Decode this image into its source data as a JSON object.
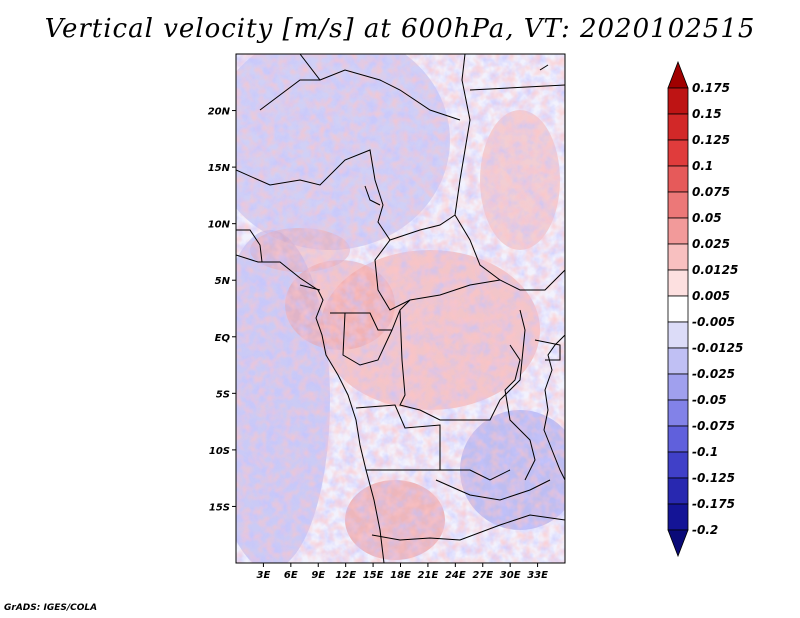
{
  "title": "Vertical velocity [m/s] at 600hPa, VT: 2020102515",
  "credit": "GrADS: IGES/COLA",
  "map": {
    "lon_range": [
      0,
      36
    ],
    "lat_range": [
      -20,
      25
    ],
    "lon_ticks": [
      {
        "value": 3,
        "label": "3E"
      },
      {
        "value": 6,
        "label": "6E"
      },
      {
        "value": 9,
        "label": "9E"
      },
      {
        "value": 12,
        "label": "12E"
      },
      {
        "value": 15,
        "label": "15E"
      },
      {
        "value": 18,
        "label": "18E"
      },
      {
        "value": 21,
        "label": "21E"
      },
      {
        "value": 24,
        "label": "24E"
      },
      {
        "value": 27,
        "label": "27E"
      },
      {
        "value": 30,
        "label": "30E"
      },
      {
        "value": 33,
        "label": "33E"
      }
    ],
    "lat_ticks": [
      {
        "value": 20,
        "label": "20N"
      },
      {
        "value": 15,
        "label": "15N"
      },
      {
        "value": 10,
        "label": "10N"
      },
      {
        "value": 5,
        "label": "5N"
      },
      {
        "value": 0,
        "label": "EQ"
      },
      {
        "value": -5,
        "label": "5S"
      },
      {
        "value": -10,
        "label": "10S"
      },
      {
        "value": -15,
        "label": "15S"
      }
    ]
  },
  "colorbar": {
    "levels": [
      "0.175",
      "0.15",
      "0.125",
      "0.1",
      "0.075",
      "0.05",
      "0.025",
      "0.0125",
      "0.005",
      "-0.005",
      "-0.0125",
      "-0.025",
      "-0.05",
      "-0.075",
      "-0.1",
      "-0.125",
      "-0.175",
      "-0.2"
    ],
    "colors": [
      "#a00000",
      "#be1414",
      "#d22828",
      "#e03c3c",
      "#e65a5a",
      "#ec7878",
      "#f29a9a",
      "#f8c0c0",
      "#fde0e0",
      "#ffffff",
      "#dcdcf8",
      "#c0c0f4",
      "#a0a0ee",
      "#8282e8",
      "#6060dc",
      "#4040c8",
      "#2828b0",
      "#141496",
      "#0a0a78"
    ]
  }
}
